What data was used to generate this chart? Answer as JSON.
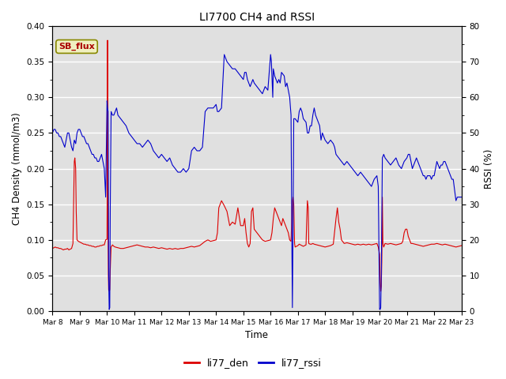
{
  "title": "LI7700 CH4 and RSSI",
  "xlabel": "Time",
  "ylabel_left": "CH4 Density (mmol/m3)",
  "ylabel_right": "RSSI (%)",
  "ylim_left": [
    0.0,
    0.4
  ],
  "ylim_right": [
    0,
    80
  ],
  "yticks_left": [
    0.0,
    0.05,
    0.1,
    0.15,
    0.2,
    0.25,
    0.3,
    0.35,
    0.4
  ],
  "yticks_right": [
    0,
    10,
    20,
    30,
    40,
    50,
    60,
    70,
    80
  ],
  "background_color": "#e0e0e0",
  "line1_color": "#dd0000",
  "line2_color": "#0000cc",
  "line1_label": "li77_den",
  "line2_label": "li77_rssi",
  "annotation_text": "SB_flux",
  "annotation_color": "#aa0000",
  "annotation_bg": "#f0f0c0",
  "annotation_border": "#888800",
  "xtick_labels": [
    "Mar 8",
    "Mar 9",
    "Mar 10",
    "Mar 11",
    "Mar 12",
    "Mar 13",
    "Mar 14",
    "Mar 15",
    "Mar 16",
    "Mar 17",
    "Mar 18",
    "Mar 19",
    "Mar 20",
    "Mar 21",
    "Mar 22",
    "Mar 23"
  ],
  "rssi_data": [
    [
      8.0,
      50
    ],
    [
      8.05,
      51
    ],
    [
      8.1,
      51
    ],
    [
      8.15,
      50
    ],
    [
      8.2,
      50
    ],
    [
      8.25,
      49
    ],
    [
      8.3,
      49
    ],
    [
      8.35,
      48
    ],
    [
      8.4,
      47
    ],
    [
      8.45,
      46
    ],
    [
      8.5,
      48
    ],
    [
      8.55,
      50
    ],
    [
      8.6,
      50
    ],
    [
      8.65,
      48
    ],
    [
      8.7,
      46
    ],
    [
      8.75,
      45
    ],
    [
      8.8,
      48
    ],
    [
      8.85,
      47
    ],
    [
      8.9,
      50
    ],
    [
      8.95,
      51
    ],
    [
      9.0,
      51
    ],
    [
      9.05,
      50
    ],
    [
      9.1,
      49
    ],
    [
      9.15,
      49
    ],
    [
      9.2,
      48
    ],
    [
      9.25,
      47
    ],
    [
      9.3,
      47
    ],
    [
      9.35,
      46
    ],
    [
      9.4,
      45
    ],
    [
      9.45,
      44
    ],
    [
      9.5,
      44
    ],
    [
      9.55,
      43
    ],
    [
      9.6,
      43
    ],
    [
      9.65,
      42
    ],
    [
      9.7,
      42
    ],
    [
      9.75,
      43
    ],
    [
      9.8,
      44
    ],
    [
      9.85,
      42
    ],
    [
      9.9,
      40
    ],
    [
      9.95,
      32
    ],
    [
      10.0,
      59
    ],
    [
      10.02,
      57
    ],
    [
      10.04,
      56
    ],
    [
      10.06,
      10
    ],
    [
      10.08,
      0.5
    ],
    [
      10.1,
      1
    ],
    [
      10.12,
      30
    ],
    [
      10.15,
      56
    ],
    [
      10.2,
      55
    ],
    [
      10.25,
      55
    ],
    [
      10.3,
      56
    ],
    [
      10.35,
      57
    ],
    [
      10.4,
      55
    ],
    [
      10.5,
      54
    ],
    [
      10.6,
      53
    ],
    [
      10.7,
      52
    ],
    [
      10.8,
      50
    ],
    [
      10.9,
      49
    ],
    [
      11.0,
      48
    ],
    [
      11.1,
      47
    ],
    [
      11.2,
      47
    ],
    [
      11.3,
      46
    ],
    [
      11.4,
      47
    ],
    [
      11.5,
      48
    ],
    [
      11.6,
      47
    ],
    [
      11.7,
      45
    ],
    [
      11.8,
      44
    ],
    [
      11.9,
      43
    ],
    [
      12.0,
      44
    ],
    [
      12.1,
      43
    ],
    [
      12.2,
      42
    ],
    [
      12.3,
      43
    ],
    [
      12.4,
      41
    ],
    [
      12.5,
      40
    ],
    [
      12.6,
      39
    ],
    [
      12.7,
      39
    ],
    [
      12.8,
      40
    ],
    [
      12.9,
      39
    ],
    [
      13.0,
      40
    ],
    [
      13.1,
      45
    ],
    [
      13.2,
      46
    ],
    [
      13.3,
      45
    ],
    [
      13.4,
      45
    ],
    [
      13.5,
      46
    ],
    [
      13.6,
      56
    ],
    [
      13.7,
      57
    ],
    [
      13.8,
      57
    ],
    [
      13.9,
      57
    ],
    [
      14.0,
      58
    ],
    [
      14.05,
      56
    ],
    [
      14.1,
      56
    ],
    [
      14.2,
      57
    ],
    [
      14.3,
      72
    ],
    [
      14.35,
      71
    ],
    [
      14.4,
      70
    ],
    [
      14.5,
      69
    ],
    [
      14.6,
      68
    ],
    [
      14.7,
      68
    ],
    [
      14.8,
      67
    ],
    [
      14.9,
      66
    ],
    [
      15.0,
      65
    ],
    [
      15.05,
      67
    ],
    [
      15.1,
      67
    ],
    [
      15.15,
      65
    ],
    [
      15.2,
      64
    ],
    [
      15.25,
      63
    ],
    [
      15.3,
      64
    ],
    [
      15.35,
      65
    ],
    [
      15.4,
      64
    ],
    [
      15.5,
      63
    ],
    [
      15.6,
      62
    ],
    [
      15.7,
      61
    ],
    [
      15.8,
      63
    ],
    [
      15.9,
      62
    ],
    [
      16.0,
      72
    ],
    [
      16.03,
      70
    ],
    [
      16.05,
      66
    ],
    [
      16.08,
      60
    ],
    [
      16.1,
      68
    ],
    [
      16.15,
      66
    ],
    [
      16.2,
      65
    ],
    [
      16.25,
      64
    ],
    [
      16.3,
      65
    ],
    [
      16.35,
      64
    ],
    [
      16.4,
      67
    ],
    [
      16.5,
      66
    ],
    [
      16.55,
      63
    ],
    [
      16.6,
      64
    ],
    [
      16.65,
      62
    ],
    [
      16.7,
      60
    ],
    [
      16.75,
      55
    ],
    [
      16.78,
      20
    ],
    [
      16.8,
      1
    ],
    [
      16.82,
      20
    ],
    [
      16.85,
      54
    ],
    [
      16.9,
      54
    ],
    [
      17.0,
      53
    ],
    [
      17.05,
      56
    ],
    [
      17.1,
      57
    ],
    [
      17.15,
      56
    ],
    [
      17.2,
      54
    ],
    [
      17.3,
      53
    ],
    [
      17.35,
      50
    ],
    [
      17.4,
      50
    ],
    [
      17.45,
      52
    ],
    [
      17.5,
      52
    ],
    [
      17.55,
      55
    ],
    [
      17.6,
      57
    ],
    [
      17.65,
      55
    ],
    [
      17.7,
      54
    ],
    [
      17.8,
      52
    ],
    [
      17.85,
      48
    ],
    [
      17.9,
      50
    ],
    [
      18.0,
      48
    ],
    [
      18.1,
      47
    ],
    [
      18.2,
      48
    ],
    [
      18.3,
      47
    ],
    [
      18.35,
      46
    ],
    [
      18.4,
      44
    ],
    [
      18.5,
      43
    ],
    [
      18.6,
      42
    ],
    [
      18.7,
      41
    ],
    [
      18.8,
      42
    ],
    [
      18.9,
      41
    ],
    [
      19.0,
      40
    ],
    [
      19.1,
      39
    ],
    [
      19.2,
      38
    ],
    [
      19.3,
      39
    ],
    [
      19.4,
      38
    ],
    [
      19.5,
      37
    ],
    [
      19.6,
      36
    ],
    [
      19.7,
      35
    ],
    [
      19.8,
      37
    ],
    [
      19.9,
      38
    ],
    [
      19.95,
      35
    ],
    [
      20.0,
      0.5
    ],
    [
      20.02,
      0.5
    ],
    [
      20.04,
      1
    ],
    [
      20.06,
      10
    ],
    [
      20.08,
      25
    ],
    [
      20.1,
      43
    ],
    [
      20.15,
      44
    ],
    [
      20.2,
      43
    ],
    [
      20.3,
      42
    ],
    [
      20.4,
      41
    ],
    [
      20.5,
      42
    ],
    [
      20.6,
      43
    ],
    [
      20.7,
      41
    ],
    [
      20.8,
      40
    ],
    [
      20.9,
      42
    ],
    [
      21.0,
      43
    ],
    [
      21.05,
      44
    ],
    [
      21.1,
      44
    ],
    [
      21.15,
      42
    ],
    [
      21.2,
      40
    ],
    [
      21.25,
      41
    ],
    [
      21.3,
      42
    ],
    [
      21.35,
      43
    ],
    [
      21.4,
      42
    ],
    [
      21.45,
      41
    ],
    [
      21.5,
      40
    ],
    [
      21.55,
      39
    ],
    [
      21.6,
      38
    ],
    [
      21.65,
      38
    ],
    [
      21.7,
      37
    ],
    [
      21.75,
      38
    ],
    [
      21.8,
      38
    ],
    [
      21.85,
      38
    ],
    [
      21.9,
      37
    ],
    [
      21.95,
      38
    ],
    [
      22.0,
      38
    ],
    [
      22.05,
      40
    ],
    [
      22.1,
      42
    ],
    [
      22.15,
      41
    ],
    [
      22.2,
      40
    ],
    [
      22.25,
      41
    ],
    [
      22.3,
      41
    ],
    [
      22.35,
      42
    ],
    [
      22.4,
      42
    ],
    [
      22.45,
      41
    ],
    [
      22.5,
      40
    ],
    [
      22.55,
      39
    ],
    [
      22.6,
      38
    ],
    [
      22.65,
      37
    ],
    [
      22.7,
      37
    ],
    [
      22.75,
      34
    ],
    [
      22.8,
      31
    ],
    [
      22.85,
      32
    ],
    [
      22.9,
      32
    ],
    [
      22.95,
      32
    ],
    [
      23.0,
      32
    ]
  ],
  "ch4_data": [
    [
      8.0,
      0.088
    ],
    [
      8.05,
      0.089
    ],
    [
      8.1,
      0.09
    ],
    [
      8.15,
      0.089
    ],
    [
      8.2,
      0.089
    ],
    [
      8.25,
      0.088
    ],
    [
      8.3,
      0.088
    ],
    [
      8.35,
      0.087
    ],
    [
      8.4,
      0.086
    ],
    [
      8.45,
      0.087
    ],
    [
      8.5,
      0.087
    ],
    [
      8.55,
      0.088
    ],
    [
      8.6,
      0.086
    ],
    [
      8.65,
      0.087
    ],
    [
      8.7,
      0.088
    ],
    [
      8.75,
      0.095
    ],
    [
      8.8,
      0.21
    ],
    [
      8.82,
      0.215
    ],
    [
      8.85,
      0.2
    ],
    [
      8.87,
      0.14
    ],
    [
      8.9,
      0.1
    ],
    [
      8.95,
      0.098
    ],
    [
      9.0,
      0.097
    ],
    [
      9.05,
      0.096
    ],
    [
      9.1,
      0.095
    ],
    [
      9.15,
      0.094
    ],
    [
      9.2,
      0.094
    ],
    [
      9.25,
      0.093
    ],
    [
      9.3,
      0.093
    ],
    [
      9.35,
      0.092
    ],
    [
      9.4,
      0.092
    ],
    [
      9.45,
      0.091
    ],
    [
      9.5,
      0.091
    ],
    [
      9.55,
      0.09
    ],
    [
      9.6,
      0.09
    ],
    [
      9.65,
      0.091
    ],
    [
      9.7,
      0.091
    ],
    [
      9.75,
      0.092
    ],
    [
      9.8,
      0.092
    ],
    [
      9.85,
      0.093
    ],
    [
      9.9,
      0.093
    ],
    [
      9.95,
      0.1
    ],
    [
      10.0,
      0.101
    ],
    [
      10.01,
      0.2
    ],
    [
      10.02,
      0.38
    ],
    [
      10.03,
      0.2
    ],
    [
      10.04,
      0.1
    ],
    [
      10.05,
      0.05
    ],
    [
      10.06,
      0.03
    ],
    [
      10.08,
      0.028
    ],
    [
      10.1,
      0.03
    ],
    [
      10.12,
      0.06
    ],
    [
      10.15,
      0.09
    ],
    [
      10.2,
      0.093
    ],
    [
      10.25,
      0.091
    ],
    [
      10.3,
      0.09
    ],
    [
      10.4,
      0.089
    ],
    [
      10.5,
      0.088
    ],
    [
      10.6,
      0.088
    ],
    [
      10.7,
      0.089
    ],
    [
      10.8,
      0.09
    ],
    [
      10.9,
      0.091
    ],
    [
      11.0,
      0.092
    ],
    [
      11.1,
      0.093
    ],
    [
      11.2,
      0.092
    ],
    [
      11.3,
      0.091
    ],
    [
      11.4,
      0.09
    ],
    [
      11.5,
      0.09
    ],
    [
      11.6,
      0.089
    ],
    [
      11.7,
      0.09
    ],
    [
      11.8,
      0.089
    ],
    [
      11.9,
      0.088
    ],
    [
      12.0,
      0.089
    ],
    [
      12.1,
      0.088
    ],
    [
      12.2,
      0.087
    ],
    [
      12.3,
      0.088
    ],
    [
      12.4,
      0.087
    ],
    [
      12.5,
      0.088
    ],
    [
      12.6,
      0.087
    ],
    [
      12.7,
      0.088
    ],
    [
      12.8,
      0.088
    ],
    [
      12.9,
      0.089
    ],
    [
      13.0,
      0.09
    ],
    [
      13.1,
      0.091
    ],
    [
      13.2,
      0.09
    ],
    [
      13.3,
      0.091
    ],
    [
      13.4,
      0.092
    ],
    [
      13.5,
      0.095
    ],
    [
      13.6,
      0.098
    ],
    [
      13.7,
      0.1
    ],
    [
      13.8,
      0.098
    ],
    [
      13.9,
      0.099
    ],
    [
      14.0,
      0.1
    ],
    [
      14.05,
      0.11
    ],
    [
      14.1,
      0.145
    ],
    [
      14.2,
      0.155
    ],
    [
      14.3,
      0.148
    ],
    [
      14.4,
      0.14
    ],
    [
      14.5,
      0.12
    ],
    [
      14.6,
      0.125
    ],
    [
      14.7,
      0.122
    ],
    [
      14.8,
      0.145
    ],
    [
      14.9,
      0.12
    ],
    [
      15.0,
      0.12
    ],
    [
      15.05,
      0.13
    ],
    [
      15.1,
      0.11
    ],
    [
      15.15,
      0.095
    ],
    [
      15.2,
      0.09
    ],
    [
      15.25,
      0.095
    ],
    [
      15.3,
      0.14
    ],
    [
      15.35,
      0.145
    ],
    [
      15.4,
      0.115
    ],
    [
      15.5,
      0.11
    ],
    [
      15.6,
      0.105
    ],
    [
      15.7,
      0.1
    ],
    [
      15.8,
      0.098
    ],
    [
      15.9,
      0.099
    ],
    [
      16.0,
      0.1
    ],
    [
      16.05,
      0.11
    ],
    [
      16.1,
      0.13
    ],
    [
      16.15,
      0.145
    ],
    [
      16.2,
      0.14
    ],
    [
      16.25,
      0.135
    ],
    [
      16.3,
      0.13
    ],
    [
      16.35,
      0.125
    ],
    [
      16.4,
      0.12
    ],
    [
      16.45,
      0.13
    ],
    [
      16.5,
      0.125
    ],
    [
      16.55,
      0.12
    ],
    [
      16.6,
      0.115
    ],
    [
      16.65,
      0.11
    ],
    [
      16.7,
      0.1
    ],
    [
      16.75,
      0.098
    ],
    [
      16.8,
      0.155
    ],
    [
      16.82,
      0.16
    ],
    [
      16.85,
      0.15
    ],
    [
      16.88,
      0.095
    ],
    [
      16.9,
      0.09
    ],
    [
      17.0,
      0.092
    ],
    [
      17.05,
      0.094
    ],
    [
      17.1,
      0.093
    ],
    [
      17.15,
      0.092
    ],
    [
      17.2,
      0.091
    ],
    [
      17.25,
      0.092
    ],
    [
      17.3,
      0.093
    ],
    [
      17.32,
      0.12
    ],
    [
      17.35,
      0.155
    ],
    [
      17.38,
      0.145
    ],
    [
      17.4,
      0.095
    ],
    [
      17.45,
      0.094
    ],
    [
      17.5,
      0.094
    ],
    [
      17.55,
      0.095
    ],
    [
      17.6,
      0.094
    ],
    [
      17.7,
      0.093
    ],
    [
      17.8,
      0.092
    ],
    [
      17.9,
      0.091
    ],
    [
      18.0,
      0.09
    ],
    [
      18.1,
      0.091
    ],
    [
      18.2,
      0.092
    ],
    [
      18.3,
      0.094
    ],
    [
      18.4,
      0.13
    ],
    [
      18.45,
      0.145
    ],
    [
      18.5,
      0.125
    ],
    [
      18.55,
      0.115
    ],
    [
      18.6,
      0.1
    ],
    [
      18.7,
      0.095
    ],
    [
      18.8,
      0.096
    ],
    [
      18.9,
      0.095
    ],
    [
      19.0,
      0.094
    ],
    [
      19.1,
      0.093
    ],
    [
      19.2,
      0.094
    ],
    [
      19.3,
      0.093
    ],
    [
      19.4,
      0.094
    ],
    [
      19.5,
      0.093
    ],
    [
      19.6,
      0.094
    ],
    [
      19.7,
      0.093
    ],
    [
      19.8,
      0.094
    ],
    [
      19.9,
      0.095
    ],
    [
      19.95,
      0.09
    ],
    [
      20.0,
      0.08
    ],
    [
      20.02,
      0.04
    ],
    [
      20.04,
      0.028
    ],
    [
      20.06,
      0.035
    ],
    [
      20.08,
      0.07
    ],
    [
      20.1,
      0.16
    ],
    [
      20.12,
      0.095
    ],
    [
      20.15,
      0.09
    ],
    [
      20.2,
      0.095
    ],
    [
      20.3,
      0.094
    ],
    [
      20.4,
      0.095
    ],
    [
      20.5,
      0.094
    ],
    [
      20.6,
      0.093
    ],
    [
      20.7,
      0.094
    ],
    [
      20.8,
      0.095
    ],
    [
      20.85,
      0.098
    ],
    [
      20.9,
      0.11
    ],
    [
      20.95,
      0.115
    ],
    [
      21.0,
      0.115
    ],
    [
      21.05,
      0.105
    ],
    [
      21.1,
      0.1
    ],
    [
      21.15,
      0.095
    ],
    [
      21.2,
      0.095
    ],
    [
      21.3,
      0.094
    ],
    [
      21.4,
      0.093
    ],
    [
      21.5,
      0.092
    ],
    [
      21.6,
      0.091
    ],
    [
      21.7,
      0.092
    ],
    [
      21.8,
      0.093
    ],
    [
      21.9,
      0.094
    ],
    [
      22.0,
      0.094
    ],
    [
      22.1,
      0.095
    ],
    [
      22.2,
      0.094
    ],
    [
      22.3,
      0.093
    ],
    [
      22.4,
      0.094
    ],
    [
      22.5,
      0.093
    ],
    [
      22.6,
      0.092
    ],
    [
      22.7,
      0.091
    ],
    [
      22.8,
      0.09
    ],
    [
      22.9,
      0.091
    ],
    [
      23.0,
      0.092
    ]
  ]
}
